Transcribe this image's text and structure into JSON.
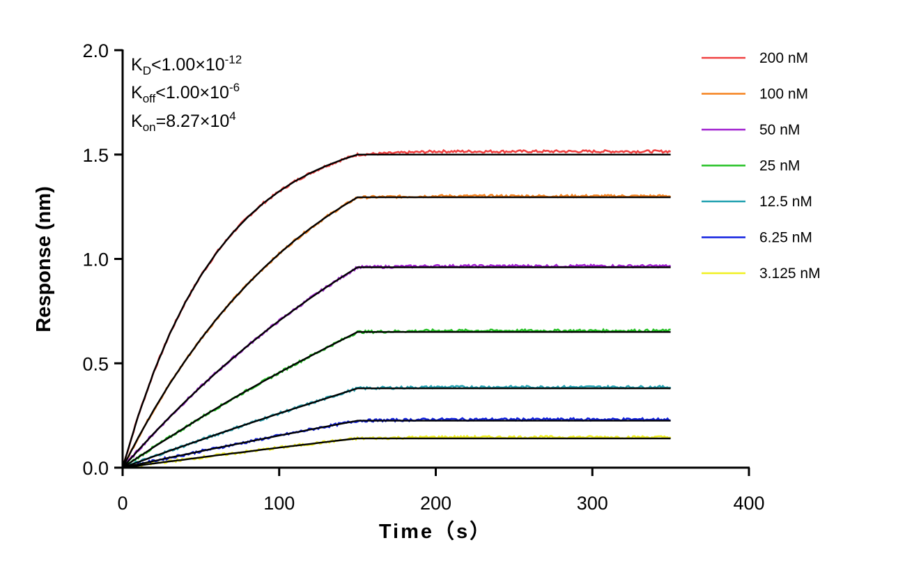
{
  "chart_data": {
    "type": "line",
    "xlabel": "Time（s）",
    "ylabel": "Response (nm)",
    "xlim": [
      0,
      400
    ],
    "ylim": [
      0,
      2.0
    ],
    "xticks": [
      "0",
      "100",
      "200",
      "300",
      "400"
    ],
    "yticks": [
      "0.0",
      "0.5",
      "1.0",
      "1.5",
      "2.0"
    ],
    "grid": false,
    "legend_position": "top-right",
    "annotations": {
      "kd": {
        "label": "K",
        "sub": "D",
        "text": "<1.00×10",
        "sup": "-12"
      },
      "koff": {
        "label": "K",
        "sub": "off",
        "text": "<1.00×10",
        "sup": "-6"
      },
      "kon": {
        "label": "K",
        "sub": "on",
        "text": "=8.27×10",
        "sup": "4"
      }
    },
    "fit_color": "#000000",
    "x": [
      0,
      10,
      20,
      30,
      40,
      50,
      60,
      70,
      80,
      90,
      100,
      110,
      120,
      130,
      140,
      150,
      200,
      250,
      300,
      350
    ],
    "series": [
      {
        "name": "200 nM",
        "color": "#f04040",
        "values": [
          0,
          0.25,
          0.461,
          0.64,
          0.792,
          0.921,
          1.03,
          1.123,
          1.201,
          1.268,
          1.324,
          1.372,
          1.412,
          1.446,
          1.475,
          1.5,
          1.5,
          1.5,
          1.5,
          1.5
        ]
      },
      {
        "name": "100 nM",
        "color": "#f5821f",
        "values": [
          0,
          0.145,
          0.278,
          0.401,
          0.513,
          0.617,
          0.713,
          0.8,
          0.881,
          0.956,
          1.025,
          1.089,
          1.147,
          1.201,
          1.25,
          1.295,
          1.295,
          1.295,
          1.295,
          1.295
        ]
      },
      {
        "name": "50 nM",
        "color": "#a020d0",
        "values": [
          0,
          0.084,
          0.165,
          0.242,
          0.317,
          0.388,
          0.457,
          0.522,
          0.585,
          0.646,
          0.704,
          0.759,
          0.813,
          0.864,
          0.913,
          0.96,
          0.96,
          0.96,
          0.96,
          0.96
        ]
      },
      {
        "name": "25 nM",
        "color": "#20c020",
        "values": [
          0,
          0.05,
          0.099,
          0.146,
          0.193,
          0.24,
          0.285,
          0.329,
          0.372,
          0.414,
          0.455,
          0.496,
          0.535,
          0.574,
          0.612,
          0.65,
          0.65,
          0.65,
          0.65,
          0.65
        ]
      },
      {
        "name": "12.5 nM",
        "color": "#20a0b0",
        "values": [
          0,
          0.027,
          0.054,
          0.081,
          0.107,
          0.133,
          0.159,
          0.185,
          0.21,
          0.235,
          0.26,
          0.284,
          0.308,
          0.332,
          0.356,
          0.38,
          0.38,
          0.38,
          0.38,
          0.38
        ]
      },
      {
        "name": "6.25 nM",
        "color": "#1020e0",
        "values": [
          0,
          0.016,
          0.032,
          0.048,
          0.063,
          0.079,
          0.094,
          0.109,
          0.124,
          0.139,
          0.154,
          0.168,
          0.183,
          0.197,
          0.211,
          0.225,
          0.225,
          0.225,
          0.225,
          0.225
        ]
      },
      {
        "name": "3.125 nM",
        "color": "#f0f020",
        "values": [
          0,
          0.01,
          0.02,
          0.03,
          0.039,
          0.049,
          0.059,
          0.068,
          0.077,
          0.087,
          0.096,
          0.105,
          0.114,
          0.123,
          0.132,
          0.14,
          0.14,
          0.14,
          0.14,
          0.14
        ]
      }
    ]
  }
}
